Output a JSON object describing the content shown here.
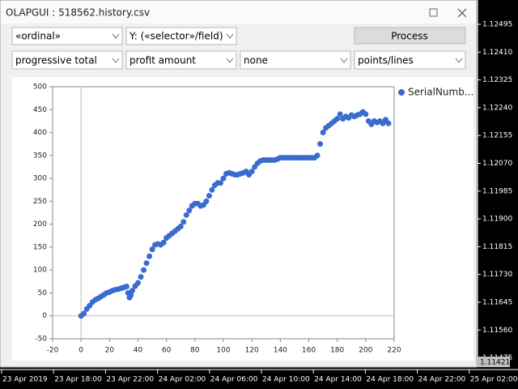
{
  "window": {
    "title": "OLAPGUI : 518562.history.csv",
    "controls": {
      "row1": [
        "«ordinal»",
        "Y: («selector»/field)"
      ],
      "button": "Process",
      "row2": [
        "progressive total",
        "profit amount",
        "none",
        "points/lines"
      ]
    }
  },
  "chart_data": {
    "type": "scatter",
    "x": [
      0,
      2,
      4,
      6,
      8,
      10,
      12,
      14,
      16,
      18,
      20,
      22,
      24,
      26,
      28,
      30,
      32,
      33,
      34,
      35,
      36,
      38,
      40,
      42,
      44,
      46,
      48,
      50,
      52,
      54,
      56,
      58,
      60,
      62,
      64,
      66,
      68,
      70,
      72,
      74,
      76,
      78,
      80,
      82,
      84,
      86,
      88,
      90,
      92,
      94,
      96,
      98,
      100,
      102,
      104,
      106,
      108,
      110,
      112,
      114,
      116,
      118,
      120,
      122,
      124,
      126,
      128,
      130,
      132,
      134,
      136,
      138,
      140,
      142,
      144,
      146,
      148,
      150,
      152,
      154,
      156,
      158,
      160,
      162,
      164,
      166,
      168,
      170,
      172,
      174,
      176,
      178,
      180,
      182,
      184,
      186,
      188,
      190,
      192,
      194,
      196,
      198,
      200,
      202,
      204,
      206,
      208,
      210,
      212,
      214,
      216
    ],
    "series": [
      {
        "name": "SerialNumb...",
        "color": "#3a6bcf",
        "values": [
          0,
          5,
          15,
          22,
          30,
          35,
          38,
          42,
          46,
          50,
          52,
          55,
          57,
          58,
          60,
          62,
          64,
          50,
          40,
          45,
          55,
          65,
          72,
          85,
          100,
          115,
          130,
          145,
          155,
          157,
          155,
          160,
          170,
          175,
          180,
          185,
          190,
          195,
          205,
          220,
          230,
          240,
          245,
          245,
          240,
          242,
          250,
          262,
          275,
          285,
          290,
          290,
          300,
          310,
          312,
          310,
          308,
          308,
          310,
          312,
          315,
          308,
          315,
          325,
          333,
          338,
          340,
          340,
          340,
          340,
          340,
          342,
          345,
          345,
          345,
          345,
          345,
          345,
          345,
          345,
          345,
          345,
          345,
          345,
          345,
          350,
          375,
          400,
          410,
          415,
          420,
          425,
          430,
          440,
          430,
          435,
          432,
          438,
          435,
          438,
          440,
          445,
          440,
          425,
          418,
          425,
          422,
          425,
          420,
          428,
          420
        ]
      }
    ],
    "xlim": [
      -20,
      220
    ],
    "xticks": [
      -20,
      0,
      20,
      40,
      60,
      80,
      100,
      120,
      140,
      160,
      180,
      200,
      220
    ],
    "ylim": [
      -50,
      500
    ],
    "yticks": [
      -50,
      0,
      50,
      100,
      150,
      200,
      250,
      300,
      350,
      400,
      450,
      500
    ]
  },
  "price_axis": {
    "labels": [
      "1.12495",
      "1.12410",
      "1.12325",
      "1.12240",
      "1.12155",
      "1.12070",
      "1.11985",
      "1.11900",
      "1.11815",
      "1.11730",
      "1.11645",
      "1.11560",
      "1.11475"
    ],
    "current": "1.11421"
  },
  "time_axis": [
    "23 Apr 2019",
    "23 Apr 18:00",
    "23 Apr 22:00",
    "24 Apr 02:00",
    "24 Apr 06:00",
    "24 Apr 10:00",
    "24 Apr 14:00",
    "24 Apr 18:00",
    "24 Apr 22:00",
    "25 Apr 02:00"
  ]
}
